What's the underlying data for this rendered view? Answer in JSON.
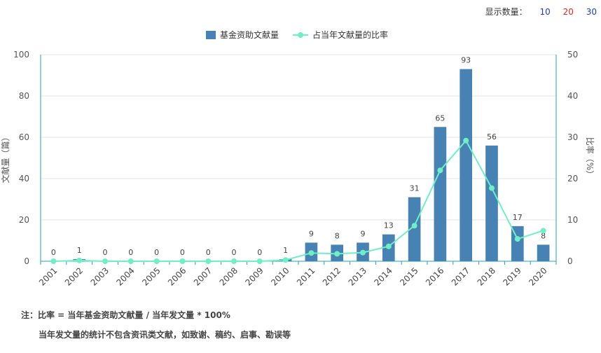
{
  "controls": {
    "label": "显示数量：",
    "options": [
      "10",
      "20",
      "30"
    ]
  },
  "chart_data": {
    "type": "bar",
    "categories": [
      "2001",
      "2002",
      "2003",
      "2004",
      "2005",
      "2006",
      "2007",
      "2008",
      "2009",
      "2010",
      "2011",
      "2012",
      "2013",
      "2014",
      "2015",
      "2016",
      "2017",
      "2018",
      "2019",
      "2020"
    ],
    "series": [
      {
        "name": "基金资助文献量",
        "type": "bar",
        "axis": "left",
        "color": "#4682b4",
        "values": [
          0,
          1,
          0,
          0,
          0,
          0,
          0,
          0,
          0,
          1,
          9,
          8,
          9,
          13,
          31,
          65,
          93,
          56,
          17,
          8
        ]
      },
      {
        "name": "占当年文献量的比率",
        "type": "line",
        "axis": "right",
        "color": "#6ef0c4",
        "values": [
          0,
          0.2,
          0,
          0,
          0,
          0,
          0,
          0,
          0,
          0.3,
          2,
          1.8,
          2.1,
          3.6,
          8.6,
          22,
          29.2,
          17.7,
          5.4,
          7.4
        ]
      }
    ],
    "ylabel": "文献量（篇）",
    "ylabel_right": "比率（%）",
    "ylim": [
      0,
      100
    ],
    "ylim_right": [
      0,
      50
    ],
    "yticks": [
      0,
      20,
      40,
      60,
      80,
      100
    ],
    "yticks_right": [
      0,
      10,
      20,
      30,
      40,
      50
    ],
    "grid": true,
    "legend_position": "top-center"
  },
  "notes": {
    "line1": "注：比率 = 当年基金资助文献量 / 当年发文量 * 100%",
    "line2": "当年发文量的统计不包含资讯类文献，如致谢、稿约、启事、勘误等"
  }
}
